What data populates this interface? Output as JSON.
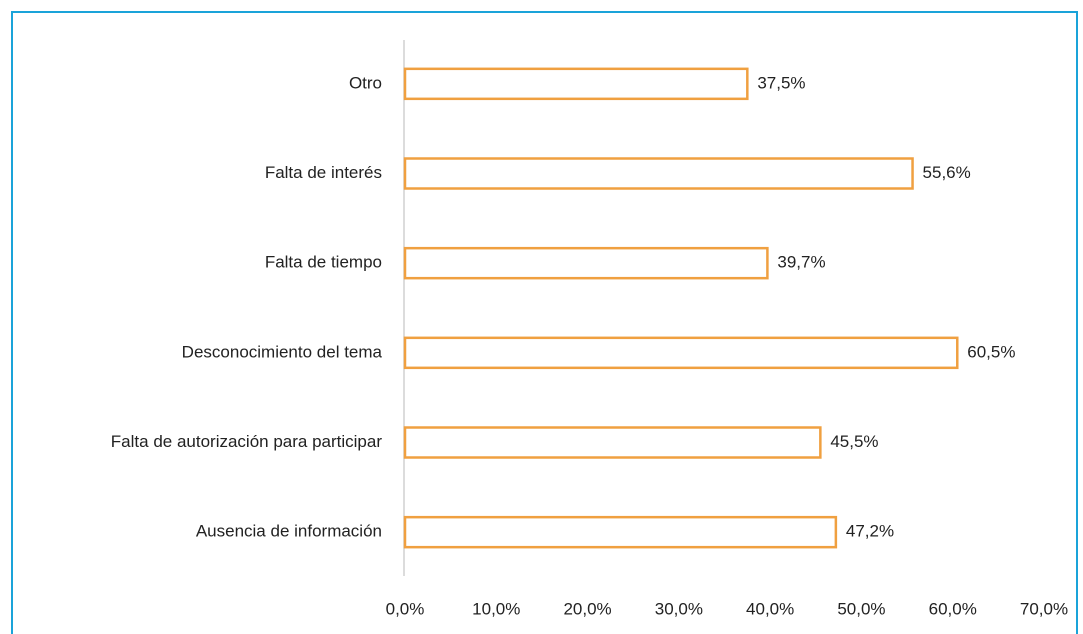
{
  "chart_data": {
    "type": "barh",
    "categories": [
      "Otro",
      "Falta de interés",
      "Falta de tiempo",
      "Desconocimiento del tema",
      "Falta de autorización para participar",
      "Ausencia de información"
    ],
    "values": [
      37.5,
      55.6,
      39.7,
      60.5,
      45.5,
      47.2
    ],
    "value_labels": [
      "37,5%",
      "55,6%",
      "39,7%",
      "60,5%",
      "45,5%",
      "47,2%"
    ],
    "color": "#f0a040",
    "xlim": [
      0,
      70
    ],
    "xticks": [
      {
        "value": 0,
        "label": "0,0%"
      },
      {
        "value": 10,
        "label": "10,0%"
      },
      {
        "value": 20,
        "label": "20,0%"
      },
      {
        "value": 30,
        "label": "30,0%"
      },
      {
        "value": 40,
        "label": "40,0%"
      },
      {
        "value": 50,
        "label": "50,0%"
      },
      {
        "value": 60,
        "label": "60,0%"
      },
      {
        "value": 70,
        "label": "70,0%"
      }
    ],
    "grid": false
  }
}
